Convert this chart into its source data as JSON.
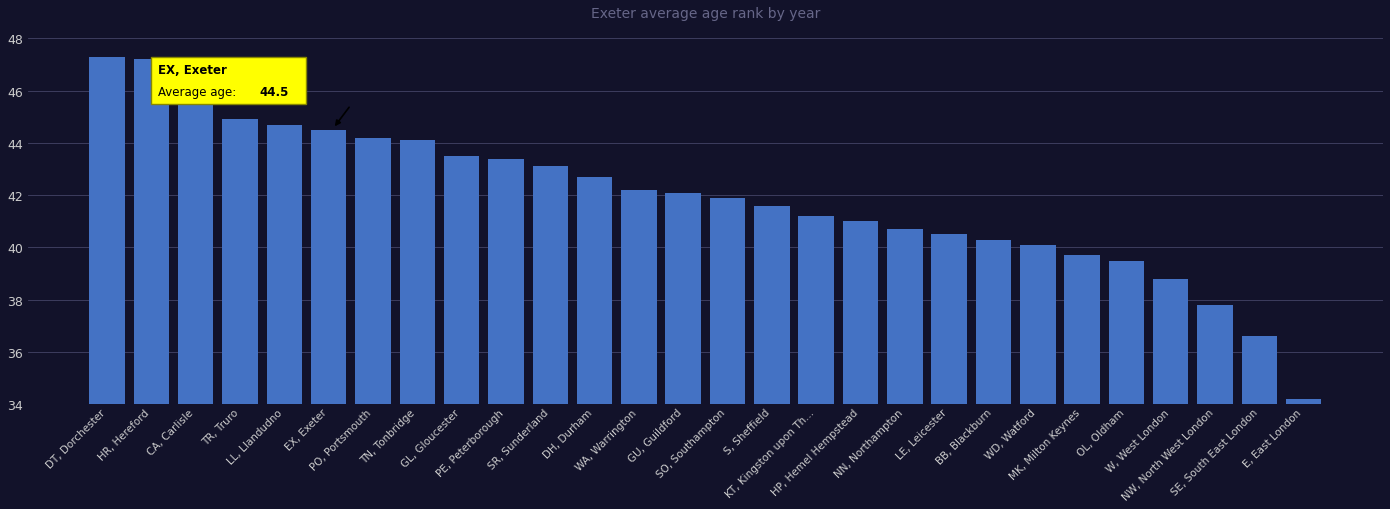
{
  "categories": [
    "DT, Dorchester",
    "HR, Hereford",
    "CA, Carlisle",
    "TR, Truro",
    "LL, Llandudno",
    "EX, Exeter",
    "PO, Portsmouth",
    "TN, Tonbridge",
    "GL, Gloucester",
    "PE, Peterborough",
    "SR, Sunderland",
    "DH, Durham",
    "WA, Warrington",
    "GU, Guildford",
    "SO, Southampton",
    "S, Sheffield",
    "KT, Kingston upon Th...",
    "HP, Hemel Hempstead",
    "NN, Northampton",
    "LE, Leicester",
    "BB, Blackburn",
    "WD, Watford",
    "MK, Milton Keynes",
    "OL, Oldham",
    "W, West London",
    "NW, North West London",
    "SE, South East London",
    "E, East London"
  ],
  "values": [
    47.3,
    47.2,
    46.5,
    44.9,
    44.7,
    44.5,
    44.2,
    44.1,
    43.5,
    43.4,
    43.1,
    42.7,
    42.2,
    42.1,
    41.9,
    41.6,
    41.2,
    41.0,
    40.7,
    40.5,
    40.3,
    40.1,
    39.7,
    39.5,
    38.8,
    37.8,
    36.6,
    34.2
  ],
  "highlight_index": 5,
  "highlight_label": "EX, Exeter",
  "highlight_value": 44.5,
  "bar_color": "#4472C4",
  "annotation_bg": "#FFFF00",
  "annotation_text_bold": "EX, Exeter",
  "annotation_line2": "Average age: ",
  "annotation_value": "44.5",
  "bg_color": "#12122a",
  "plot_bg_color": "#12122a",
  "grid_color": "#444466",
  "text_color": "#cccccc",
  "title": "Exeter average age rank by year",
  "title_color": "#cccccc",
  "ylim_min": 34,
  "ylim_max": 48.5,
  "yticks": [
    34,
    36,
    38,
    40,
    42,
    44,
    46,
    48
  ],
  "xlabel": "",
  "ylabel": ""
}
